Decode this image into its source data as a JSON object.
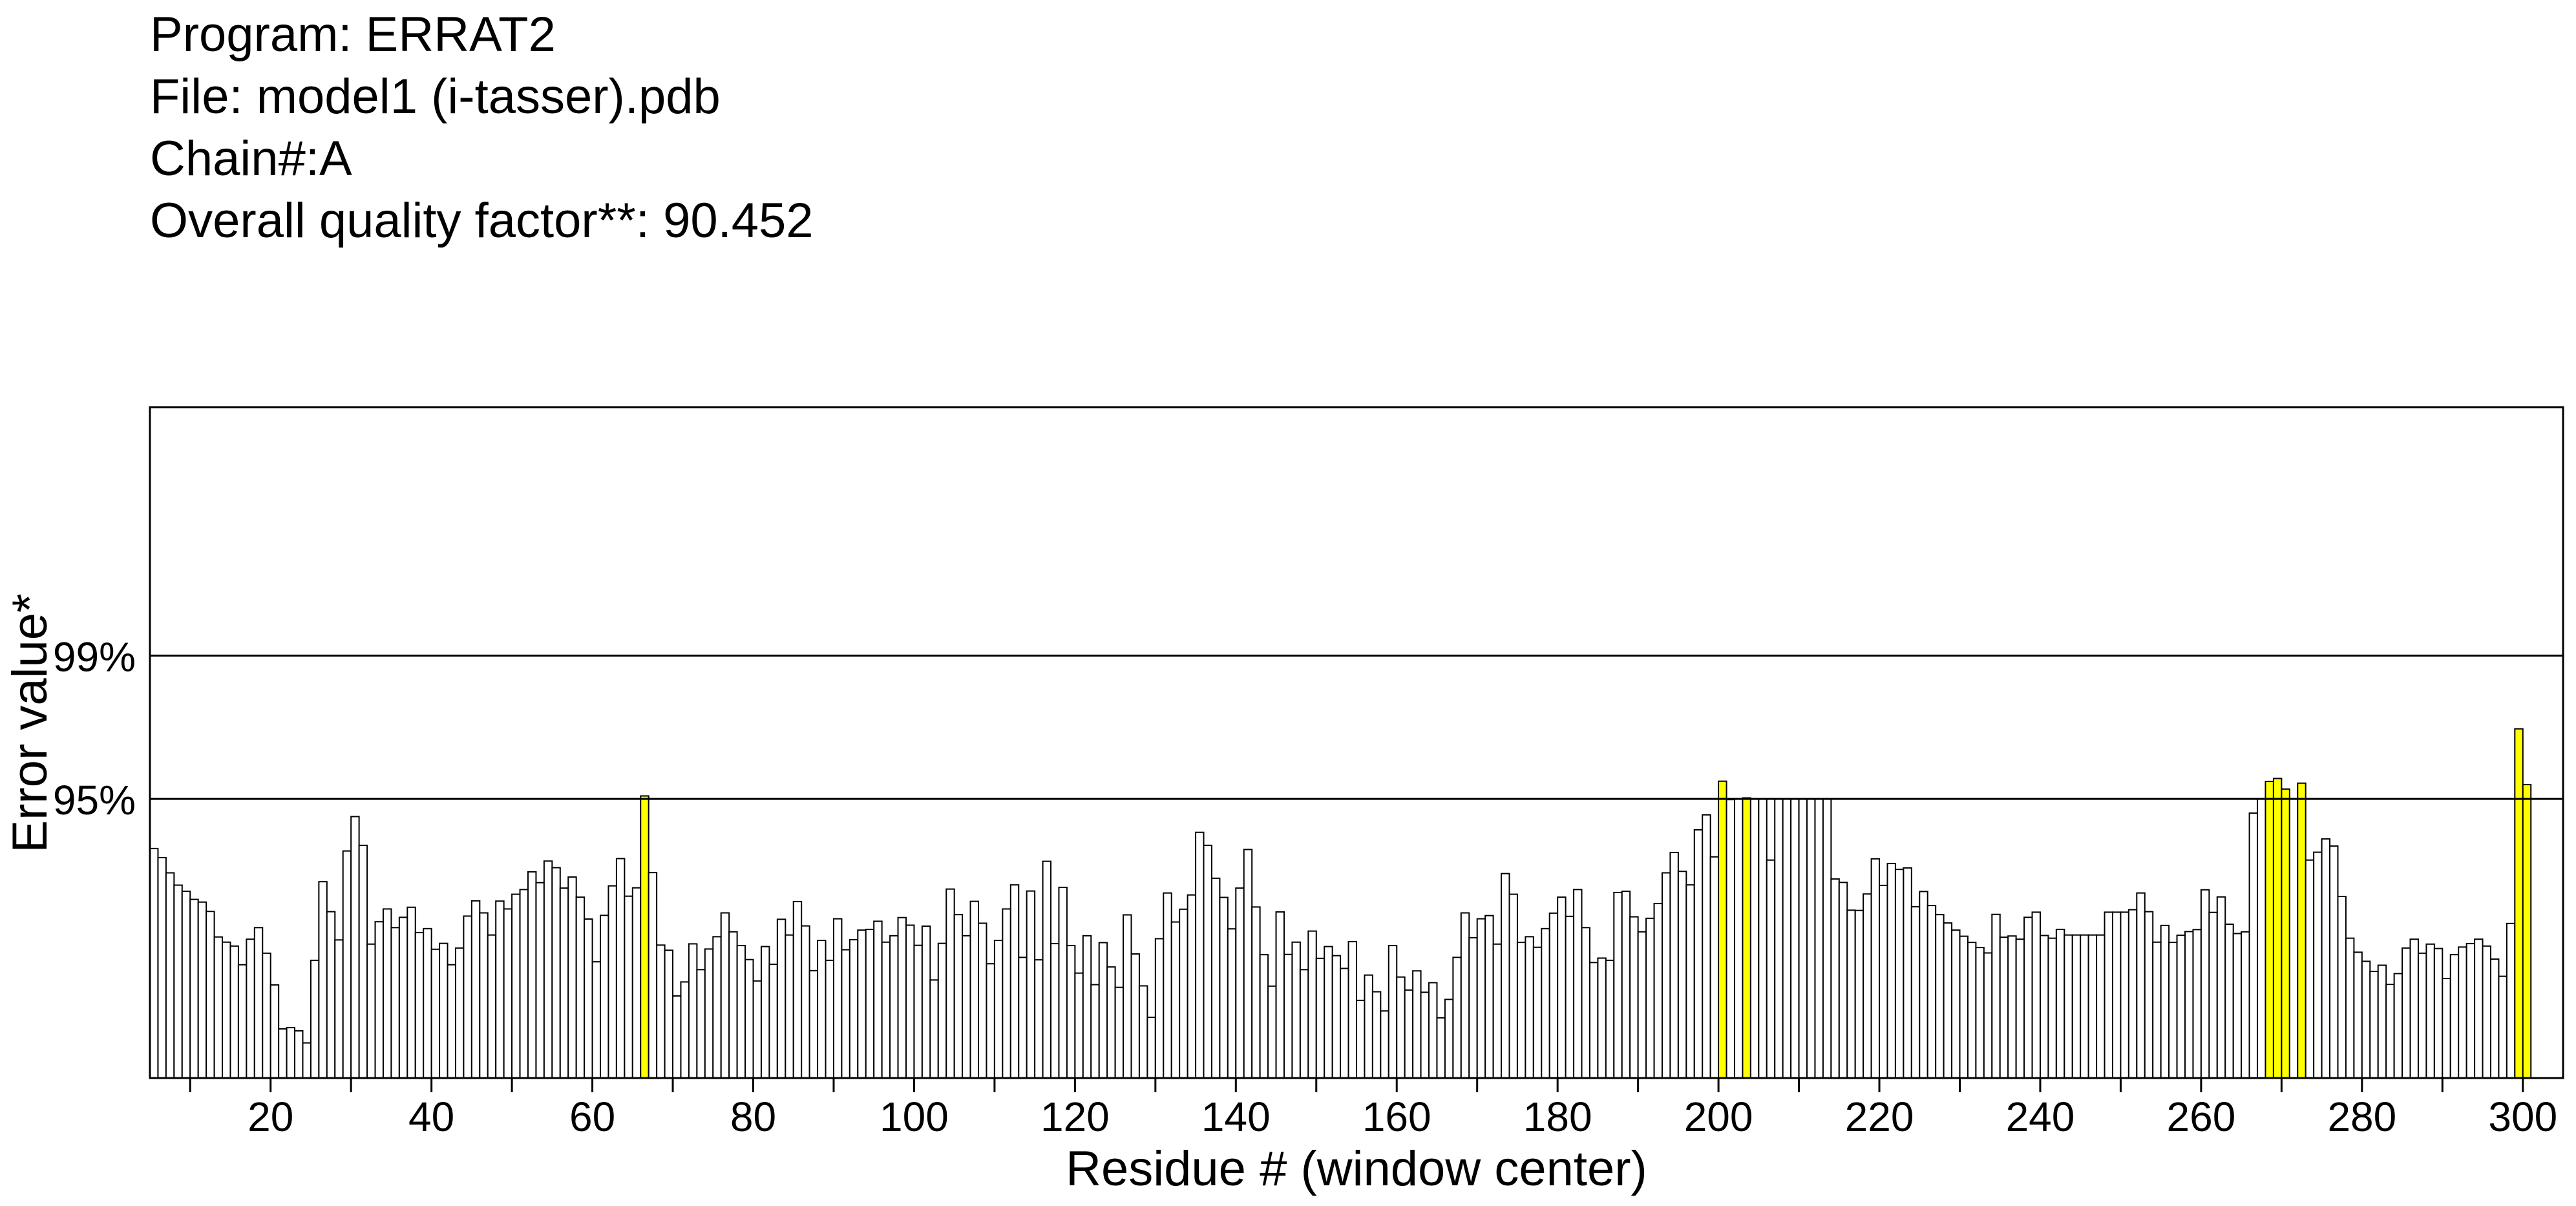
{
  "header": {
    "program": "Program: ERRAT2",
    "file": "File: model1 (i-tasser).pdb",
    "chain": "Chain#:A",
    "quality": "Overall quality factor**: 90.452"
  },
  "colors": {
    "normal": "#ffffff",
    "warning": "#ffff00",
    "error": "#ff0000",
    "outline": "#000000"
  },
  "chart_data": {
    "type": "bar",
    "xlabel": "Residue # (window center)",
    "ylabel": "Error value*",
    "x_start": 5,
    "x_end": 304,
    "xticks": [
      20,
      40,
      60,
      80,
      100,
      120,
      140,
      160,
      180,
      200,
      220,
      240,
      260,
      280,
      300
    ],
    "reference_lines": [
      {
        "label": "95%",
        "value": 11.36
      },
      {
        "label": "99%",
        "value": 17.19
      }
    ],
    "ylim": [
      0,
      27.3
    ],
    "color_rule": "white below 95% line, yellow between 95% and 99%, red above 99%",
    "start_residue": 5,
    "values": [
      9.34,
      8.97,
      8.35,
      7.85,
      7.6,
      7.27,
      7.16,
      6.78,
      5.74,
      5.53,
      5.37,
      4.61,
      5.65,
      6.12,
      5.08,
      3.79,
      2.0,
      2.05,
      1.92,
      1.43,
      4.79,
      7.99,
      6.77,
      5.62,
      9.24,
      10.64,
      9.47,
      5.45,
      6.36,
      6.88,
      6.12,
      6.54,
      6.95,
      5.92,
      6.08,
      5.24,
      5.48,
      4.61,
      5.29,
      6.59,
      7.21,
      6.72,
      5.82,
      7.2,
      6.88,
      7.48,
      7.67,
      8.39,
      7.95,
      8.83,
      8.56,
      7.73,
      8.18,
      7.36,
      6.47,
      4.73,
      6.62,
      7.82,
      8.93,
      7.4,
      7.74,
      11.48,
      8.36,
      5.41,
      5.2,
      3.34,
      3.91,
      5.46,
      4.41,
      5.25,
      5.75,
      6.72,
      5.95,
      5.39,
      4.82,
      3.95,
      5.35,
      4.63,
      6.46,
      5.82,
      7.18,
      6.19,
      4.37,
      5.6,
      4.79,
      6.48,
      5.22,
      5.63,
      6.02,
      6.05,
      6.38,
      5.53,
      5.79,
      6.53,
      6.22,
      5.4,
      6.18,
      3.99,
      5.48,
      7.69,
      6.65,
      5.79,
      7.19,
      6.3,
      4.65,
      5.6,
      6.88,
      7.86,
      4.91,
      7.61,
      4.81,
      8.82,
      5.47,
      7.76,
      5.39,
      4.27,
      5.79,
      3.8,
      5.51,
      4.52,
      3.69,
      6.64,
      5.05,
      3.75,
      2.47,
      5.67,
      7.53,
      6.35,
      6.87,
      7.45,
      10.0,
      9.47,
      8.13,
      7.35,
      6.07,
      7.73,
      9.3,
      6.96,
      5.02,
      3.74,
      6.76,
      5.03,
      5.53,
      4.41,
      5.98,
      4.87,
      5.35,
      4.98,
      4.46,
      5.55,
      3.16,
      4.19,
      3.51,
      2.73,
      5.39,
      4.11,
      3.58,
      4.36,
      3.49,
      3.88,
      2.45,
      3.2,
      4.91,
      6.72,
      5.71,
      6.48,
      6.61,
      5.45,
      8.32,
      7.48,
      5.52,
      5.75,
      5.32,
      6.08,
      6.71,
      7.36,
      6.58,
      7.67,
      6.12,
      4.7,
      4.88,
      4.79,
      7.55,
      7.6,
      6.56,
      5.95,
      6.5,
      7.1,
      8.35,
      9.18,
      8.41,
      7.86,
      10.1,
      10.71,
      9.0,
      12.08,
      11.33,
      11.36,
      11.4,
      11.36,
      11.36,
      8.87,
      11.36,
      11.36,
      11.36,
      11.36,
      11.36,
      11.36,
      11.36,
      8.1,
      7.96,
      6.83,
      6.82,
      7.49,
      8.92,
      7.84,
      8.73,
      8.49,
      8.55,
      6.97,
      7.59,
      7.02,
      6.65,
      6.31,
      6.02,
      5.77,
      5.52,
      5.31,
      5.09,
      6.66,
      5.73,
      5.78,
      5.65,
      6.54,
      6.75,
      5.8,
      5.69,
      6.05,
      5.82,
      5.82,
      5.82,
      5.82,
      5.82,
      6.75,
      6.75,
      6.75,
      6.85,
      7.53,
      6.77,
      5.53,
      6.21,
      5.52,
      5.81,
      5.96,
      6.04,
      7.66,
      6.74,
      7.37,
      6.26,
      5.88,
      5.95,
      10.78,
      11.36,
      12.07,
      12.19,
      11.76,
      11.36,
      12.0,
      8.87,
      9.19,
      9.73,
      9.44,
      7.39,
      5.69,
      5.12,
      4.75,
      4.34,
      4.59,
      3.81,
      4.25,
      5.29,
      5.65,
      5.08,
      5.45,
      5.27,
      4.05,
      5.02,
      5.33,
      5.47,
      5.65,
      5.37,
      4.84,
      4.14,
      6.29,
      14.21,
      11.94
    ]
  }
}
